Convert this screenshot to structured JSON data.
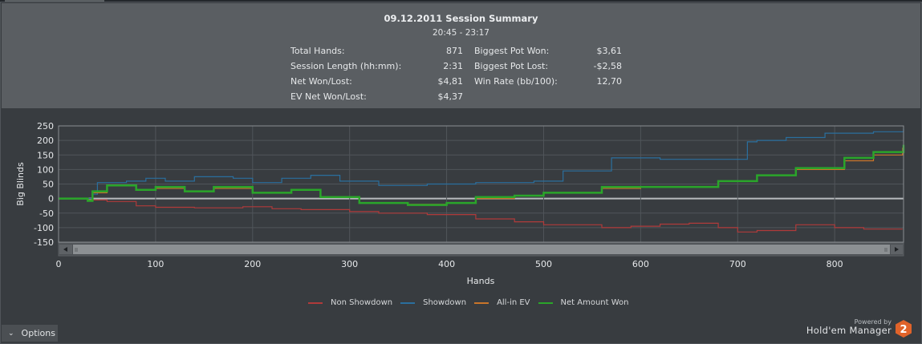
{
  "summary": {
    "title": "09.12.2011 Session Summary",
    "time_range": "20:45 - 23:17",
    "stats_left": [
      {
        "label": "Total Hands:",
        "value": "871"
      },
      {
        "label": "Session Length (hh:mm):",
        "value": "2:31"
      },
      {
        "label": "Net Won/Lost:",
        "value": "$4,81"
      },
      {
        "label": "EV Net Won/Lost:",
        "value": "$4,37"
      }
    ],
    "stats_right": [
      {
        "label": "Biggest Pot Won:",
        "value": "$3,61"
      },
      {
        "label": "Biggest Pot Lost:",
        "value": "-$2,58"
      },
      {
        "label": "Win Rate (bb/100):",
        "value": "12,70"
      }
    ]
  },
  "footer": {
    "options_label": "Options",
    "powered_by": "Powered by",
    "brand": "Hold'em Manager",
    "brand_badge": "2"
  },
  "colors": {
    "non_showdown": "#b03a3a",
    "showdown": "#2a6f9e",
    "allin_ev": "#c9752a",
    "net_won": "#2aa52a",
    "brand_badge": "#e0632a"
  },
  "chart_data": {
    "type": "line",
    "title": "",
    "xlabel": "Hands",
    "ylabel": "Big Blinds",
    "xlim": [
      0,
      871
    ],
    "ylim": [
      -150,
      250
    ],
    "xticks": [
      0,
      100,
      200,
      300,
      400,
      500,
      600,
      700,
      800
    ],
    "yticks": [
      250,
      200,
      150,
      100,
      50,
      0,
      -50,
      -100,
      -150
    ],
    "grid": true,
    "legend_position": "bottom",
    "series": [
      {
        "name": "Non Showdown",
        "key": "non_showdown",
        "points": [
          [
            0,
            0
          ],
          [
            30,
            -5
          ],
          [
            50,
            -10
          ],
          [
            80,
            -25
          ],
          [
            100,
            -30
          ],
          [
            140,
            -32
          ],
          [
            190,
            -28
          ],
          [
            220,
            -35
          ],
          [
            250,
            -38
          ],
          [
            300,
            -45
          ],
          [
            330,
            -50
          ],
          [
            380,
            -55
          ],
          [
            430,
            -70
          ],
          [
            470,
            -80
          ],
          [
            500,
            -90
          ],
          [
            560,
            -100
          ],
          [
            590,
            -95
          ],
          [
            620,
            -88
          ],
          [
            650,
            -85
          ],
          [
            680,
            -100
          ],
          [
            700,
            -115
          ],
          [
            720,
            -110
          ],
          [
            760,
            -90
          ],
          [
            800,
            -100
          ],
          [
            830,
            -105
          ],
          [
            870,
            -105
          ]
        ]
      },
      {
        "name": "Showdown",
        "key": "showdown",
        "points": [
          [
            0,
            0
          ],
          [
            30,
            0
          ],
          [
            35,
            15
          ],
          [
            40,
            55
          ],
          [
            70,
            60
          ],
          [
            90,
            70
          ],
          [
            110,
            60
          ],
          [
            140,
            75
          ],
          [
            180,
            70
          ],
          [
            200,
            55
          ],
          [
            230,
            70
          ],
          [
            260,
            80
          ],
          [
            290,
            60
          ],
          [
            330,
            45
          ],
          [
            380,
            50
          ],
          [
            430,
            55
          ],
          [
            470,
            55
          ],
          [
            490,
            60
          ],
          [
            520,
            95
          ],
          [
            570,
            140
          ],
          [
            620,
            135
          ],
          [
            680,
            135
          ],
          [
            710,
            195
          ],
          [
            720,
            200
          ],
          [
            750,
            210
          ],
          [
            790,
            225
          ],
          [
            840,
            230
          ],
          [
            871,
            240
          ]
        ]
      },
      {
        "name": "All-in EV",
        "key": "allin_ev",
        "points": [
          [
            0,
            0
          ],
          [
            30,
            -5
          ],
          [
            35,
            20
          ],
          [
            50,
            45
          ],
          [
            80,
            30
          ],
          [
            100,
            35
          ],
          [
            130,
            25
          ],
          [
            160,
            35
          ],
          [
            200,
            20
          ],
          [
            240,
            30
          ],
          [
            270,
            5
          ],
          [
            310,
            -15
          ],
          [
            360,
            -20
          ],
          [
            400,
            -15
          ],
          [
            430,
            0
          ],
          [
            470,
            10
          ],
          [
            500,
            20
          ],
          [
            560,
            35
          ],
          [
            600,
            40
          ],
          [
            640,
            40
          ],
          [
            680,
            60
          ],
          [
            720,
            80
          ],
          [
            760,
            100
          ],
          [
            810,
            130
          ],
          [
            840,
            150
          ],
          [
            870,
            175
          ]
        ]
      },
      {
        "name": "Net Amount Won",
        "key": "net_won",
        "points": [
          [
            0,
            0
          ],
          [
            30,
            -8
          ],
          [
            35,
            25
          ],
          [
            50,
            45
          ],
          [
            80,
            30
          ],
          [
            100,
            40
          ],
          [
            130,
            25
          ],
          [
            160,
            40
          ],
          [
            200,
            20
          ],
          [
            240,
            30
          ],
          [
            270,
            5
          ],
          [
            310,
            -15
          ],
          [
            360,
            -22
          ],
          [
            400,
            -15
          ],
          [
            430,
            5
          ],
          [
            470,
            10
          ],
          [
            500,
            20
          ],
          [
            560,
            40
          ],
          [
            600,
            40
          ],
          [
            640,
            40
          ],
          [
            680,
            60
          ],
          [
            720,
            80
          ],
          [
            760,
            105
          ],
          [
            810,
            140
          ],
          [
            840,
            160
          ],
          [
            871,
            185
          ]
        ]
      }
    ]
  }
}
